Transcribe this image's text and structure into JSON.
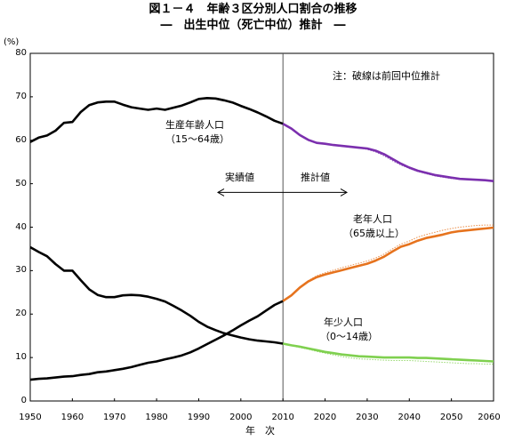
{
  "figure": {
    "title": "図１－４　年齢３区分別人口割合の推移",
    "subtitle": "―　出生中位（死亡中位）推計　―"
  },
  "chart_data": {
    "type": "line",
    "ylabel": "(%)",
    "xlabel": "年　次",
    "ylim": [
      0,
      80
    ],
    "xlim": [
      1950,
      2060
    ],
    "y_ticks": [
      "0",
      "10",
      "20",
      "30",
      "40",
      "50",
      "60",
      "70",
      "80"
    ],
    "x_ticks": [
      "1950",
      "1960",
      "1970",
      "1980",
      "1990",
      "2000",
      "2010",
      "2020",
      "2030",
      "2040",
      "2050",
      "2060"
    ],
    "divider_year": 2010,
    "note": "注：破線は前回中位推計",
    "annotation_actual": "実績値",
    "annotation_projected": "推計値",
    "series": [
      {
        "name": "生産年齢人口",
        "label_line1": "生産年齢人口",
        "label_line2": "（15～64歳）",
        "color_actual": "#000000",
        "color_projected": "#7b2fae",
        "x_actual": [
          1950,
          1952,
          1954,
          1956,
          1958,
          1960,
          1962,
          1964,
          1966,
          1968,
          1970,
          1972,
          1974,
          1976,
          1978,
          1980,
          1982,
          1984,
          1986,
          1988,
          1990,
          1992,
          1994,
          1996,
          1998,
          2000,
          2002,
          2004,
          2006,
          2008,
          2010
        ],
        "y_actual": [
          59.6,
          60.6,
          61.1,
          62.2,
          64.0,
          64.2,
          66.5,
          68.1,
          68.7,
          68.9,
          68.9,
          68.2,
          67.6,
          67.3,
          67.0,
          67.3,
          67.0,
          67.5,
          68.0,
          68.7,
          69.5,
          69.7,
          69.6,
          69.2,
          68.7,
          67.9,
          67.2,
          66.4,
          65.5,
          64.5,
          63.8
        ],
        "x_projected": [
          2010,
          2012,
          2014,
          2016,
          2018,
          2020,
          2022,
          2024,
          2026,
          2028,
          2030,
          2032,
          2034,
          2036,
          2038,
          2040,
          2042,
          2044,
          2046,
          2048,
          2050,
          2052,
          2054,
          2056,
          2058,
          2060
        ],
        "y_projected": [
          63.8,
          62.7,
          61.2,
          60.1,
          59.4,
          59.2,
          58.9,
          58.7,
          58.5,
          58.3,
          58.1,
          57.6,
          56.8,
          55.7,
          54.6,
          53.7,
          53.0,
          52.5,
          52.0,
          51.7,
          51.4,
          51.1,
          51.0,
          50.9,
          50.8,
          50.6
        ],
        "y_previous": [
          63.8,
          62.6,
          61.1,
          60.0,
          59.4,
          59.1,
          58.8,
          58.6,
          58.4,
          58.2,
          57.9,
          57.3,
          56.4,
          55.3,
          54.3,
          53.5,
          52.8,
          52.3,
          51.8,
          51.5,
          51.2,
          51.0,
          50.9,
          50.8,
          50.7,
          50.6
        ]
      },
      {
        "name": "老年人口",
        "label_line1": "老年人口",
        "label_line2": "（65歳以上）",
        "color_actual": "#000000",
        "color_projected": "#e6731e",
        "x_actual": [
          1950,
          1952,
          1954,
          1956,
          1958,
          1960,
          1962,
          1964,
          1966,
          1968,
          1970,
          1972,
          1974,
          1976,
          1978,
          1980,
          1982,
          1984,
          1986,
          1988,
          1990,
          1992,
          1994,
          1996,
          1998,
          2000,
          2002,
          2004,
          2006,
          2008,
          2010
        ],
        "y_actual": [
          4.9,
          5.1,
          5.2,
          5.4,
          5.6,
          5.7,
          6.0,
          6.2,
          6.6,
          6.8,
          7.1,
          7.4,
          7.8,
          8.3,
          8.8,
          9.1,
          9.6,
          10.0,
          10.5,
          11.2,
          12.1,
          13.1,
          14.1,
          15.1,
          16.2,
          17.4,
          18.5,
          19.5,
          20.8,
          22.1,
          23.0
        ],
        "x_projected": [
          2010,
          2012,
          2014,
          2016,
          2018,
          2020,
          2022,
          2024,
          2026,
          2028,
          2030,
          2032,
          2034,
          2036,
          2038,
          2040,
          2042,
          2044,
          2046,
          2048,
          2050,
          2052,
          2054,
          2056,
          2058,
          2060
        ],
        "y_projected": [
          23.0,
          24.3,
          26.1,
          27.5,
          28.5,
          29.1,
          29.6,
          30.1,
          30.6,
          31.1,
          31.6,
          32.3,
          33.2,
          34.4,
          35.5,
          36.1,
          36.9,
          37.5,
          37.9,
          38.3,
          38.8,
          39.1,
          39.3,
          39.5,
          39.7,
          39.9
        ],
        "y_previous": [
          23.0,
          24.4,
          26.2,
          27.7,
          28.8,
          29.5,
          30.1,
          30.7,
          31.2,
          31.7,
          32.2,
          32.9,
          33.8,
          35.0,
          36.1,
          36.8,
          37.7,
          38.3,
          38.8,
          39.3,
          39.7,
          40.0,
          40.2,
          40.4,
          40.5,
          40.5
        ]
      },
      {
        "name": "年少人口",
        "label_line1": "年少人口",
        "label_line2": "（0～14歳）",
        "color_actual": "#000000",
        "color_projected": "#7fd04f",
        "x_actual": [
          1950,
          1952,
          1954,
          1956,
          1958,
          1960,
          1962,
          1964,
          1966,
          1968,
          1970,
          1972,
          1974,
          1976,
          1978,
          1980,
          1982,
          1984,
          1986,
          1988,
          1990,
          1992,
          1994,
          1996,
          1998,
          2000,
          2002,
          2004,
          2006,
          2008,
          2010
        ],
        "y_actual": [
          35.4,
          34.3,
          33.3,
          31.5,
          30.0,
          30.0,
          27.8,
          25.7,
          24.4,
          23.9,
          23.9,
          24.3,
          24.4,
          24.3,
          24.0,
          23.5,
          22.9,
          21.9,
          20.8,
          19.6,
          18.2,
          17.1,
          16.3,
          15.6,
          15.1,
          14.6,
          14.2,
          13.9,
          13.7,
          13.5,
          13.2
        ],
        "x_projected": [
          2010,
          2012,
          2014,
          2016,
          2018,
          2020,
          2022,
          2024,
          2026,
          2028,
          2030,
          2032,
          2034,
          2036,
          2038,
          2040,
          2042,
          2044,
          2046,
          2048,
          2050,
          2052,
          2054,
          2056,
          2058,
          2060
        ],
        "y_projected": [
          13.2,
          12.8,
          12.5,
          12.1,
          11.7,
          11.3,
          11.0,
          10.7,
          10.5,
          10.3,
          10.2,
          10.1,
          10.0,
          10.0,
          10.0,
          10.0,
          9.9,
          9.9,
          9.8,
          9.7,
          9.6,
          9.5,
          9.4,
          9.3,
          9.2,
          9.1
        ],
        "y_previous": [
          13.2,
          12.7,
          12.3,
          11.9,
          11.4,
          11.0,
          10.6,
          10.2,
          9.9,
          9.7,
          9.6,
          9.5,
          9.4,
          9.3,
          9.3,
          9.3,
          9.2,
          9.1,
          9.0,
          8.9,
          8.8,
          8.7,
          8.6,
          8.6,
          8.5,
          8.5
        ]
      }
    ]
  }
}
